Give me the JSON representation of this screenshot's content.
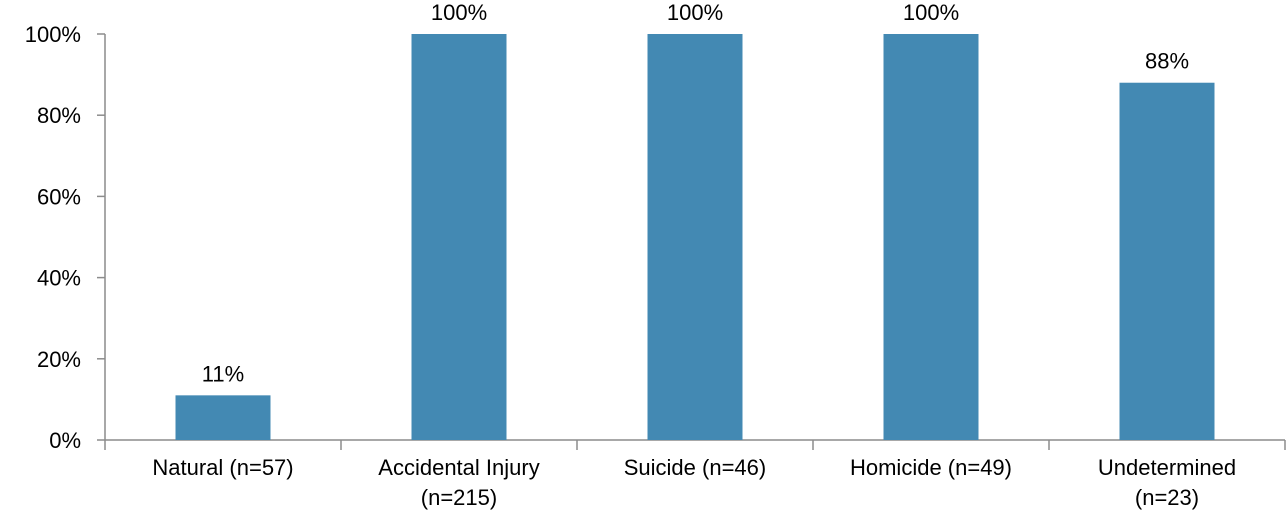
{
  "chart_data": {
    "type": "bar",
    "categories": [
      [
        "Natural (n=57)"
      ],
      [
        "Accidental Injury",
        "(n=215)"
      ],
      [
        "Suicide (n=46)"
      ],
      [
        "Homicide (n=49)"
      ],
      [
        "Undetermined",
        "(n=23)"
      ]
    ],
    "values": [
      11,
      100,
      100,
      100,
      88
    ],
    "data_labels": [
      "11%",
      "100%",
      "100%",
      "100%",
      "88%"
    ],
    "ylim": [
      0,
      100
    ],
    "yticks": [
      0,
      20,
      40,
      60,
      80,
      100
    ],
    "ytick_labels": [
      "0%",
      "20%",
      "40%",
      "60%",
      "80%",
      "100%"
    ],
    "grid": false,
    "legend": "none",
    "bar_color": "#4389b3",
    "axis_color": "#8c8c8c"
  }
}
